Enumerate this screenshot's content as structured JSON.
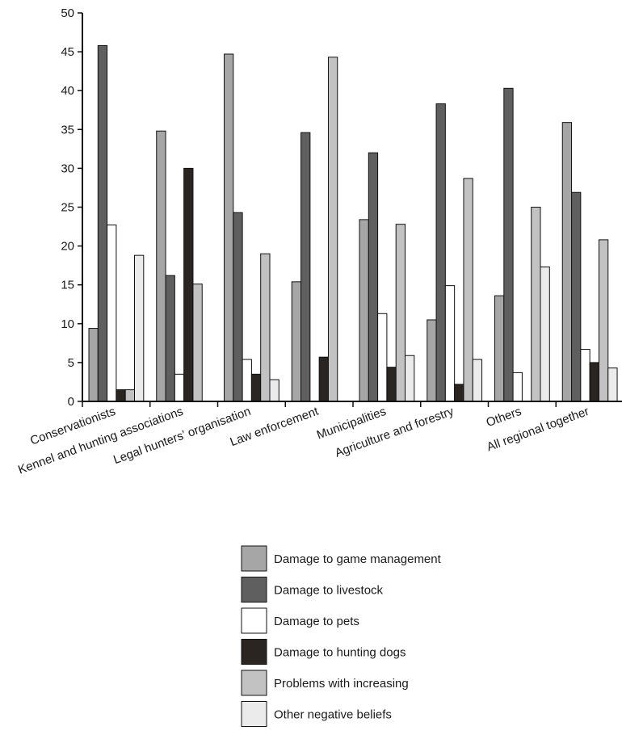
{
  "chart_data": {
    "type": "bar",
    "title": "",
    "xlabel": "",
    "ylabel": "",
    "ylim": [
      0,
      50
    ],
    "yticks": [
      0,
      5,
      10,
      15,
      20,
      25,
      30,
      35,
      40,
      45,
      50
    ],
    "grid": false,
    "legend_position": "bottom",
    "categories": [
      "Conservationists",
      "Kennel and hunting associations",
      "Legal hunters’ organisation",
      "Law enforcement",
      "Municipalities",
      "Agriculture and forestry",
      "Others",
      "All regional together"
    ],
    "series": [
      {
        "name": "Damage to game management",
        "color": "#a6a6a6",
        "values": [
          9.4,
          34.8,
          44.7,
          15.4,
          23.4,
          10.5,
          13.6,
          35.9
        ]
      },
      {
        "name": "Damage to livestock",
        "color": "#5f5f5f",
        "values": [
          45.8,
          16.2,
          24.3,
          34.6,
          32.0,
          38.3,
          40.3,
          26.9
        ]
      },
      {
        "name": "Damage to pets",
        "color": "#ffffff",
        "values": [
          22.7,
          3.5,
          5.4,
          0,
          11.3,
          14.9,
          3.7,
          6.7
        ]
      },
      {
        "name": "Damage to hunting dogs",
        "color": "#2b2522",
        "values": [
          1.5,
          30.0,
          3.5,
          5.7,
          4.4,
          2.2,
          0,
          5.0
        ]
      },
      {
        "name": "Problems with increasing",
        "color": "#c2c2c2",
        "values": [
          1.5,
          15.1,
          19.0,
          44.3,
          22.8,
          28.7,
          25.0,
          20.8
        ]
      },
      {
        "name": "Other negative beliefs",
        "color": "#ebebeb",
        "values": [
          18.8,
          0,
          2.8,
          0,
          5.9,
          5.4,
          17.3,
          4.3
        ]
      }
    ]
  }
}
